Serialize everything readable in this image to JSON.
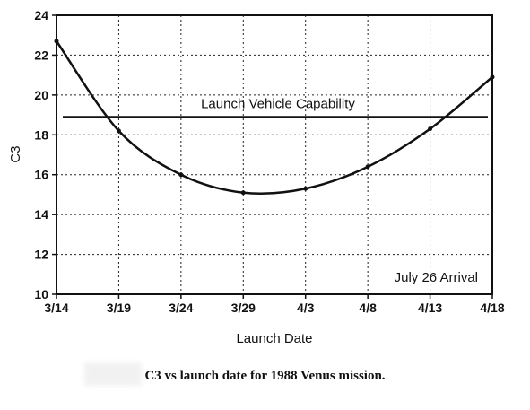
{
  "chart_data": {
    "type": "line",
    "xlabel": "Launch Date",
    "ylabel": "C3",
    "x_ticks": [
      "3/14",
      "3/19",
      "3/24",
      "3/29",
      "4/3",
      "4/8",
      "4/13",
      "4/18"
    ],
    "y_ticks": [
      "10",
      "12",
      "14",
      "16",
      "18",
      "20",
      "22",
      "24"
    ],
    "ylim": [
      10,
      24
    ],
    "grid": true,
    "series": [
      {
        "x": [
          "3/14",
          "3/19",
          "3/24",
          "3/29",
          "4/3",
          "4/8",
          "4/13",
          "4/18"
        ],
        "values": [
          22.7,
          18.2,
          16.0,
          15.1,
          15.3,
          16.4,
          18.3,
          20.9
        ]
      }
    ],
    "reference_lines": [
      {
        "label": "Launch Vehicle Capability",
        "y": 18.9
      }
    ],
    "annotations": [
      "July 26 Arrival"
    ]
  },
  "caption": "C3 vs launch date for 1988 Venus mission."
}
